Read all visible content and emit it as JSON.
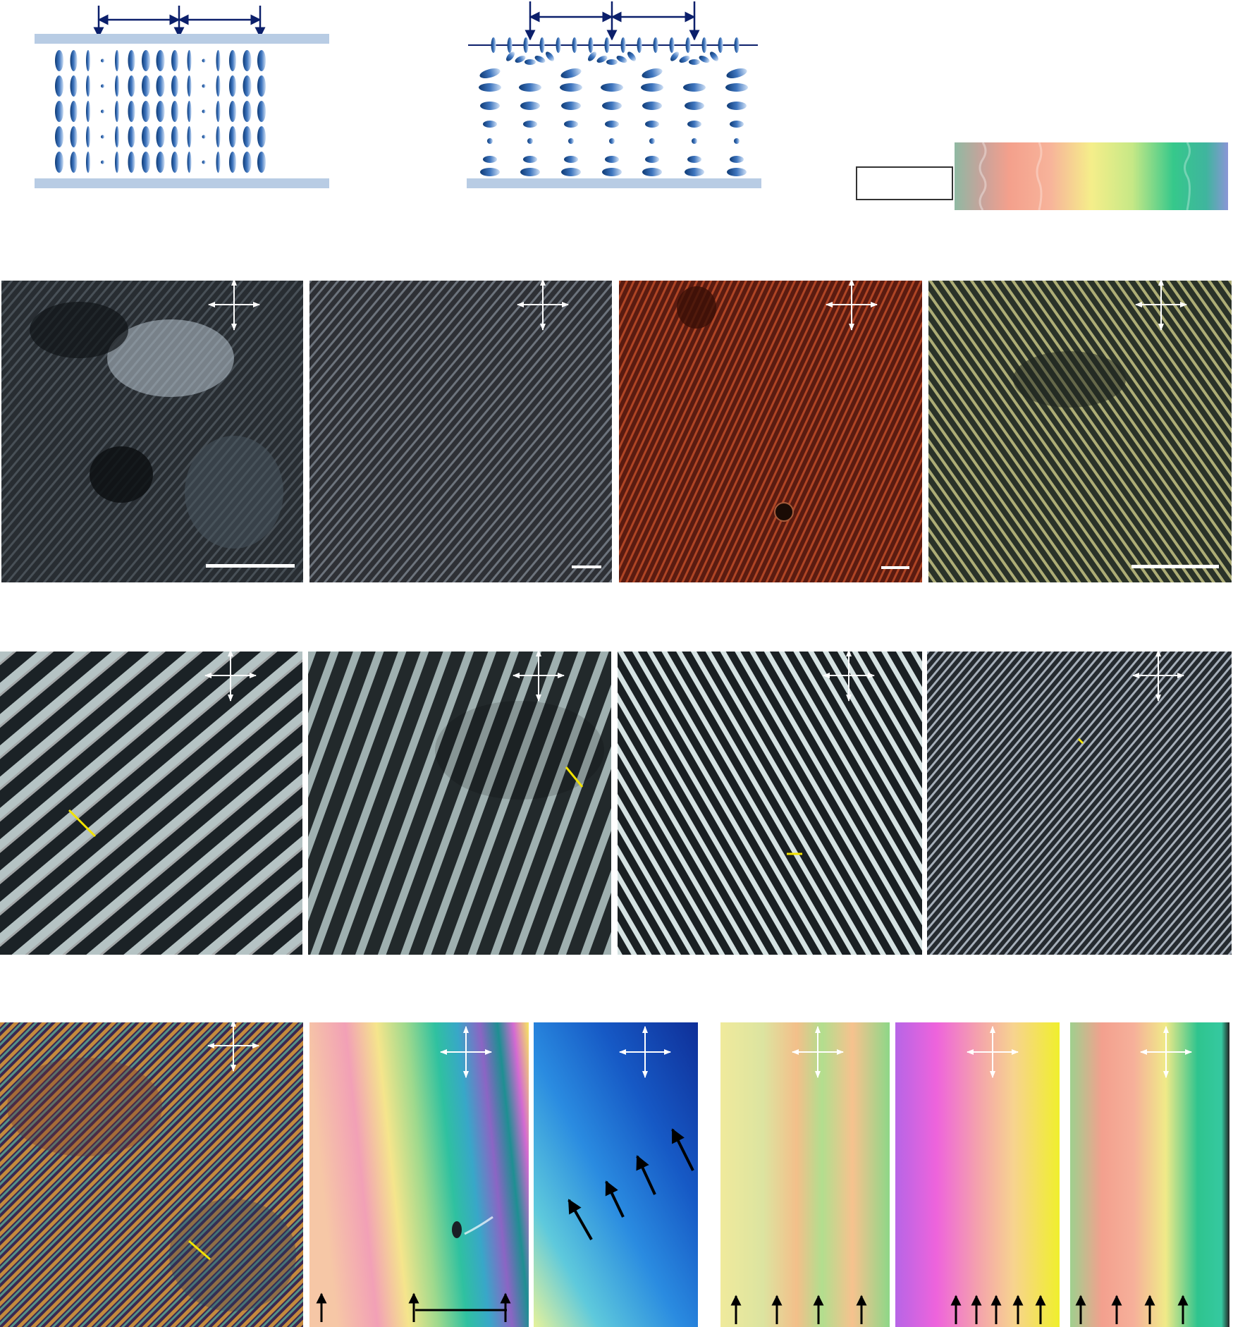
{
  "colors": {
    "director_blue": "#1f4f8e",
    "plate": "#b8cce4",
    "arrow_navy": "#0b1f6b",
    "scale_yellow": "#f2e200"
  },
  "icons": {
    "polarizer": "crossed-polarizers-icon",
    "scale_bar": "scale-bar-icon",
    "pitch_arrow": "pitch-arrow-icon"
  },
  "rows": {
    "top_row_panels": [
      "bulk-helix-schematic",
      "surface-anchored-helix-schematic",
      "color-strip"
    ],
    "micrograph_row_1": 4,
    "micrograph_row_2": 4,
    "micrograph_row_3": 6
  }
}
